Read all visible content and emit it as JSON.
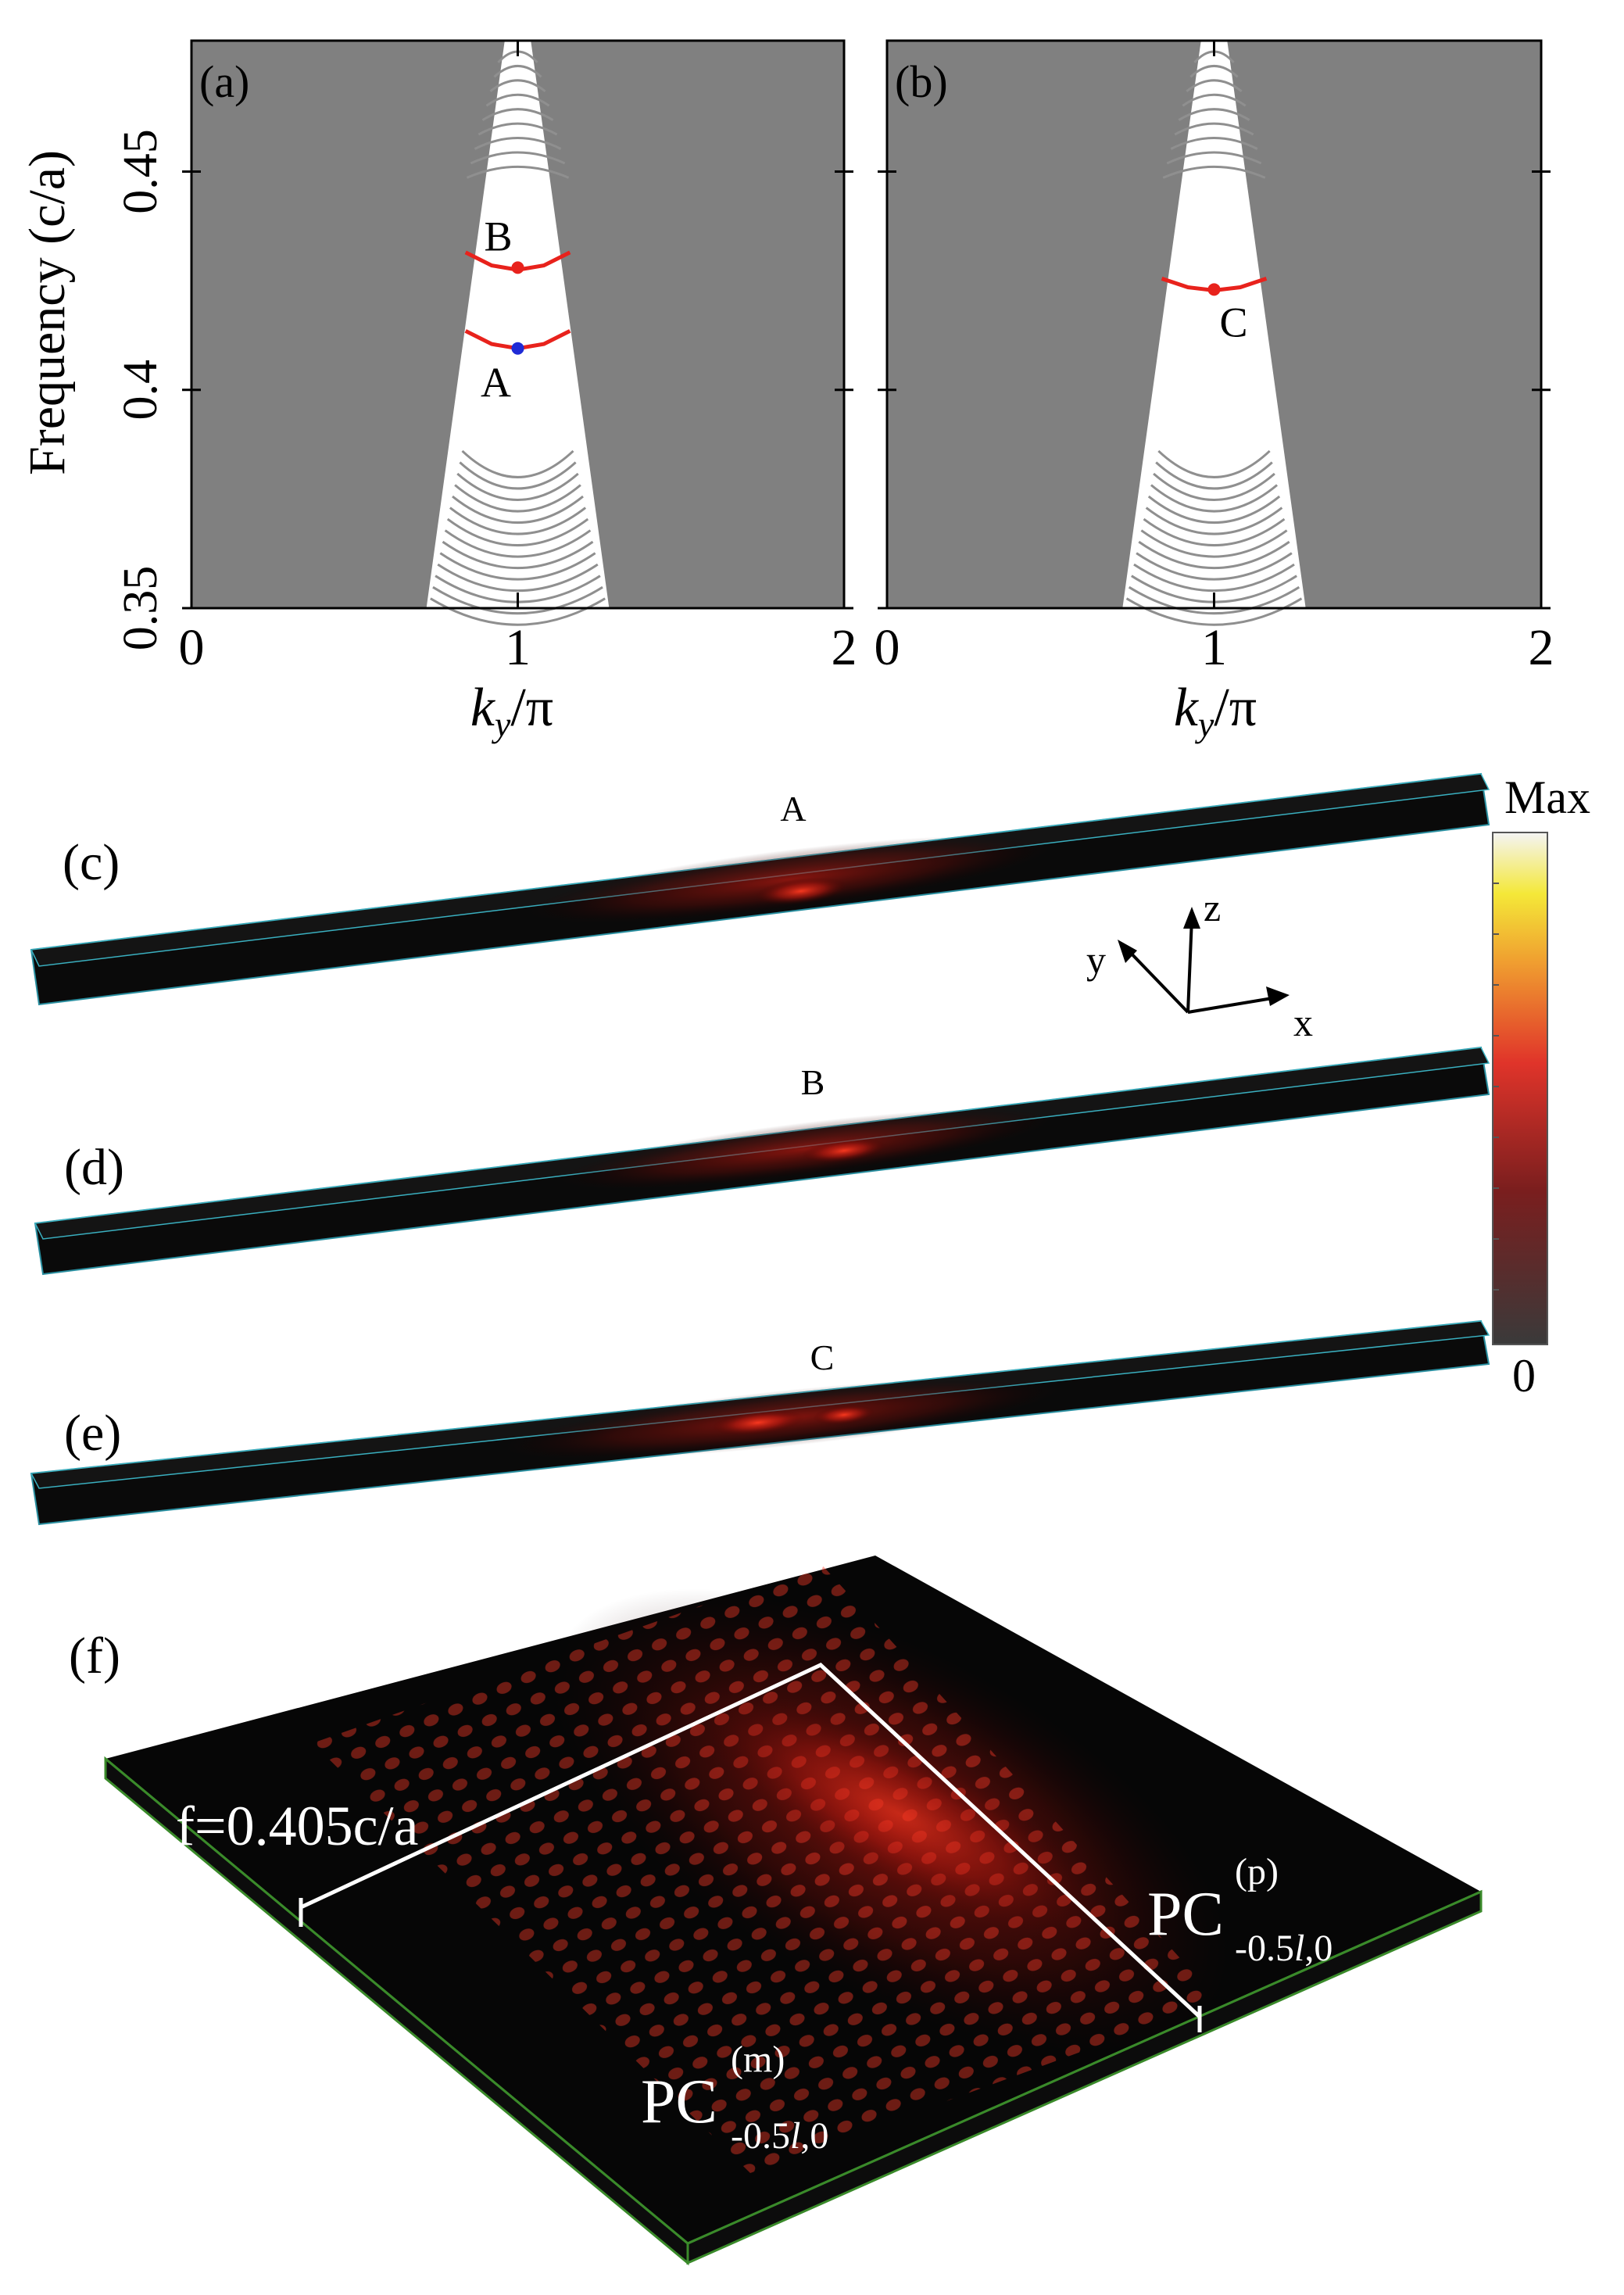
{
  "panels_top": [
    {
      "tag": "(a)",
      "points": [
        {
          "label": "B",
          "k": 1.0,
          "freq": 0.428,
          "color": "#e8221c"
        },
        {
          "label": "A",
          "k": 1.0,
          "freq": 0.4095,
          "color": "#1f2bd6"
        }
      ]
    },
    {
      "tag": "(b)",
      "points": [
        {
          "label": "C",
          "k": 1.0,
          "freq": 0.423,
          "color": "#e8221c"
        }
      ]
    }
  ],
  "chart_data": [
    {
      "type": "line",
      "panel": "(a)",
      "xlabel_main": "k",
      "xlabel_sub": "y",
      "xlabel_tail": "/π",
      "ylabel": "Frequency (c/a)",
      "xlim": [
        0,
        2
      ],
      "ylim": [
        0.35,
        0.48
      ],
      "x_ticks": [
        "0",
        "1",
        "2"
      ],
      "y_ticks": [
        "0.35",
        "0.4",
        "0.45"
      ],
      "y_tick_values": [
        0.35,
        0.4,
        0.45
      ],
      "background_color": "#808080",
      "gap_color": "#ffffff",
      "bulk_band_color": "#8f8f8f",
      "defect_band_color": "#e8221c",
      "gap_edges": {
        "top_k": [
          0.96,
          1.04
        ],
        "top_freq": 0.48,
        "bottom_k": [
          0.72,
          1.28
        ],
        "bottom_freq": 0.35
      },
      "series": [
        {
          "x": [
            0.84,
            0.92,
            1.0,
            1.08,
            1.16
          ],
          "y": [
            0.4315,
            0.4285,
            0.4275,
            0.4285,
            0.4315
          ]
        },
        {
          "x": [
            0.84,
            0.92,
            1.0,
            1.08,
            1.16
          ],
          "y": [
            0.4135,
            0.4105,
            0.4095,
            0.4105,
            0.4135
          ]
        }
      ]
    },
    {
      "type": "line",
      "panel": "(b)",
      "xlabel_main": "k",
      "xlabel_sub": "y",
      "xlabel_tail": "/π",
      "ylabel": "",
      "xlim": [
        0,
        2
      ],
      "ylim": [
        0.35,
        0.48
      ],
      "x_ticks": [
        "0",
        "1",
        "2"
      ],
      "y_ticks": [],
      "y_tick_values": [
        0.35,
        0.4,
        0.45
      ],
      "background_color": "#808080",
      "gap_color": "#ffffff",
      "bulk_band_color": "#8f8f8f",
      "defect_band_color": "#e8221c",
      "gap_edges": {
        "top_k": [
          0.96,
          1.04
        ],
        "top_freq": 0.48,
        "bottom_k": [
          0.72,
          1.28
        ],
        "bottom_freq": 0.35
      },
      "series": [
        {
          "x": [
            0.84,
            0.92,
            1.0,
            1.08,
            1.16
          ],
          "y": [
            0.4255,
            0.4235,
            0.4228,
            0.4235,
            0.4255
          ]
        }
      ]
    }
  ],
  "field_panels": [
    {
      "tag": "(c)",
      "mode": "A"
    },
    {
      "tag": "(d)",
      "mode": "B"
    },
    {
      "tag": "(e)",
      "mode": "C"
    }
  ],
  "axes_triad": {
    "x": "x",
    "y": "y",
    "z": "z"
  },
  "colorbar": {
    "max_label": "Max",
    "min_label": "0",
    "stops": [
      "#3a3a3a",
      "#7a1e1e",
      "#e0342a",
      "#f0a030",
      "#f4e838",
      "#f4f4f4"
    ]
  },
  "panel_f": {
    "tag": "(f)",
    "frequency_label": "f=0.405c/a",
    "region_p": {
      "main": "PC",
      "sup": "(p)",
      "sub_pre": "-0.5",
      "sub_italic": "l",
      "sub_post": ",0"
    },
    "region_m": {
      "main": "PC",
      "sup": "(m)",
      "sub_pre": "-0.5",
      "sub_italic": "l",
      "sub_post": ",0"
    },
    "edge_color": "#3a8a2a"
  }
}
